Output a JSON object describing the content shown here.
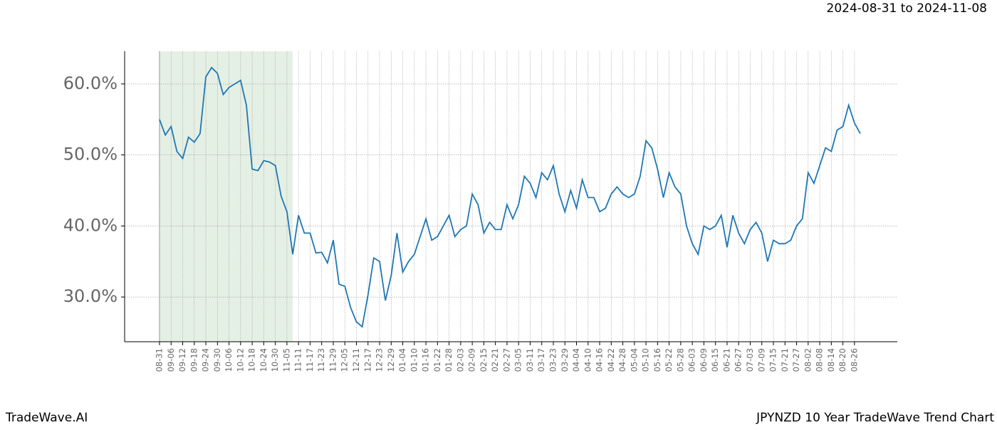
{
  "header": {
    "date_range": "2024-08-31 to 2024-11-08"
  },
  "footer": {
    "brand": "TradeWave.AI",
    "caption": "JPYNZD 10 Year TradeWave Trend Chart"
  },
  "chart_data": {
    "type": "line",
    "categories": [
      "08-31",
      null,
      "09-06",
      null,
      "09-12",
      null,
      "09-18",
      null,
      "09-24",
      null,
      "09-30",
      null,
      "10-06",
      null,
      "10-12",
      null,
      "10-18",
      null,
      "10-24",
      null,
      "10-30",
      null,
      "11-05",
      null,
      "11-11",
      null,
      "11-17",
      null,
      "11-23",
      null,
      "11-29",
      null,
      "12-05",
      null,
      "12-11",
      null,
      "12-17",
      null,
      "12-23",
      null,
      "12-29",
      null,
      "01-04",
      null,
      "01-10",
      null,
      "01-16",
      null,
      "01-22",
      null,
      "01-28",
      null,
      "02-03",
      null,
      "02-09",
      null,
      "02-15",
      null,
      "02-21",
      null,
      "02-27",
      null,
      "03-05",
      null,
      "03-11",
      null,
      "03-17",
      null,
      "03-23",
      null,
      "03-29",
      null,
      "04-04",
      null,
      "04-10",
      null,
      "04-16",
      null,
      "04-22",
      null,
      "04-28",
      null,
      "05-04",
      null,
      "05-10",
      null,
      "05-16",
      null,
      "05-22",
      null,
      "05-28",
      null,
      "06-03",
      null,
      "06-09",
      null,
      "06-15",
      null,
      "06-21",
      null,
      "06-27",
      null,
      "07-03",
      null,
      "07-09",
      null,
      "07-15",
      null,
      "07-21",
      null,
      "07-27",
      null,
      "08-02",
      null,
      "08-08",
      null,
      "08-14",
      null,
      "08-20",
      null,
      "08-26",
      null
    ],
    "series": [
      {
        "color": "#1f77b4",
        "values": [
          55,
          52.8,
          54,
          50.5,
          49.5,
          52.5,
          51.8,
          53,
          61,
          62.3,
          61.5,
          58.5,
          59.5,
          60,
          60.5,
          57,
          48,
          47.8,
          49.2,
          49,
          48.5,
          44.2,
          42,
          36,
          41.5,
          39,
          39,
          36.2,
          36.3,
          34.8,
          38,
          31.8,
          31.5,
          28.5,
          26.5,
          25.8,
          30.3,
          35.5,
          35,
          29.5,
          33,
          39,
          33.5,
          35,
          36,
          38.5,
          41,
          38,
          38.5,
          40,
          41.5,
          38.5,
          39.5,
          40,
          44.5,
          43,
          39,
          40.5,
          39.5,
          39.5,
          43,
          41,
          43,
          47,
          46,
          44,
          47.5,
          46.5,
          48.5,
          44.5,
          42,
          45,
          42.5,
          46.5,
          44,
          44,
          42,
          42.5,
          44.5,
          45.5,
          44.5,
          44,
          44.5,
          47,
          52,
          51,
          48,
          44,
          47.5,
          45.5,
          44.5,
          40,
          37.5,
          36,
          40,
          39.5,
          40,
          41.5,
          37,
          41.5,
          39,
          37.5,
          39.5,
          40.5,
          39,
          35,
          38,
          37.5,
          37.5,
          38,
          40,
          41,
          47.5,
          46,
          48.5,
          51,
          50.5,
          53.5,
          54,
          57,
          54.5,
          53
        ]
      }
    ],
    "ylim": [
      23.7,
      64.6
    ],
    "yticks": [
      {
        "value": 30,
        "label": "30.0%"
      },
      {
        "value": 40,
        "label": "40.0%"
      },
      {
        "value": 50,
        "label": "50.0%"
      },
      {
        "value": 60,
        "label": "60.0%"
      }
    ],
    "grid": true,
    "shade": {
      "from_index": 0,
      "to_index": 23,
      "color": "#e5f0e5"
    }
  }
}
